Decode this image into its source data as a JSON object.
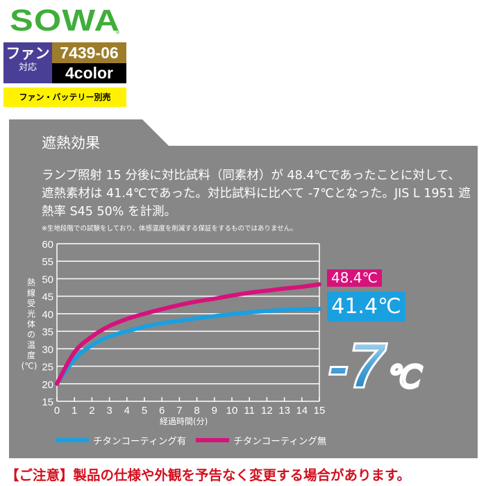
{
  "brand": {
    "logo": "SOWA",
    "registered": "®"
  },
  "badges": {
    "fan_line1": "ファン",
    "fan_line2": "対応",
    "product_number": "7439-06",
    "colors": "4color",
    "sold_separately": "ファン・バッテリー別売"
  },
  "panel": {
    "title": "遮熱効果",
    "description": "ランプ照射 15 分後に対比試料（同素材）が 48.4℃であったことに対して、遮熱素材は 41.4℃であった。対比試料に比べて -7℃となった。JIS L 1951 遮熱率 S45 50% を計測。",
    "note": "※生地段階での試験をしており、体感温度を削減する保証をするものではありません。",
    "label_without": "48.4℃",
    "label_with": "41.4℃",
    "difference": "-7℃"
  },
  "caution": "【ご注意】製品の仕様や外観を予告なく変更する場合があります。",
  "colors": {
    "panel": "#878787",
    "pink": "#d6127b",
    "blue": "#1aa0e0",
    "logo_green": "#3fae3a",
    "caution_red": "#d3101e"
  },
  "chart_data": {
    "type": "line",
    "xlabel": "経過時間(分)",
    "ylabel": "熱線受光体の温度",
    "ylabel_unit": "(℃)",
    "xlim": [
      0,
      15
    ],
    "ylim": [
      15,
      60
    ],
    "xticks": [
      "0",
      "1",
      "2",
      "3",
      "4",
      "5",
      "6",
      "7",
      "8",
      "9",
      "10",
      "11",
      "12",
      "13",
      "14",
      "15"
    ],
    "yticks": [
      "15",
      "20",
      "25",
      "30",
      "35",
      "40",
      "45",
      "50",
      "55",
      "60"
    ],
    "grid": true,
    "legend_position": "bottom",
    "x": [
      0,
      1,
      2,
      3,
      4,
      5,
      6,
      7,
      8,
      9,
      10,
      11,
      12,
      13,
      14,
      15
    ],
    "series": [
      {
        "name": "チタンコーティング有",
        "color": "#1aa0e0",
        "values": [
          20,
          27,
          31,
          33.5,
          35,
          36.3,
          37.3,
          38,
          38.7,
          39.3,
          39.9,
          40.4,
          40.8,
          41.1,
          41.3,
          41.4
        ]
      },
      {
        "name": "チタンコーティング無",
        "color": "#d6127b",
        "values": [
          20,
          29,
          33.5,
          36.5,
          38.5,
          40,
          41.3,
          42.5,
          43.5,
          44.3,
          45.2,
          46,
          46.6,
          47.2,
          47.7,
          48.4
        ]
      }
    ]
  }
}
